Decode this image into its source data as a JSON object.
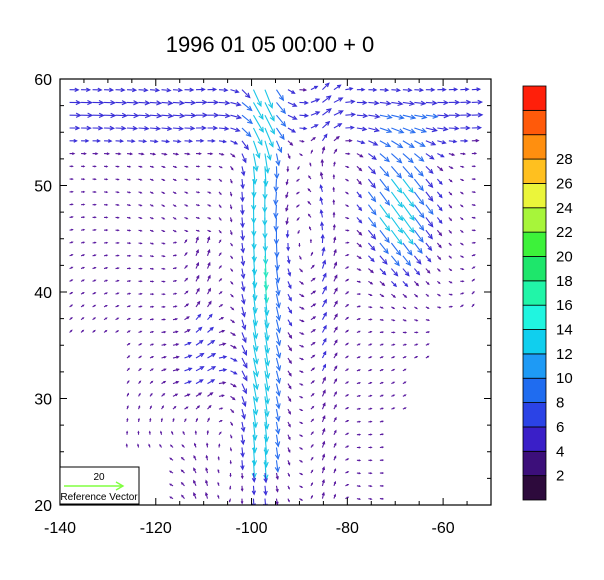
{
  "chart_data": {
    "type": "vector-field",
    "title": "1996 01 05 00:00 + 0",
    "xlabel": "",
    "ylabel": "",
    "xlim": [
      -140,
      -50
    ],
    "ylim": [
      20,
      60
    ],
    "x_ticks": [
      -140,
      -120,
      -100,
      -80,
      -60
    ],
    "x_tick_labels": [
      "-140",
      "-120",
      "-100",
      "-80",
      "-60"
    ],
    "y_ticks": [
      20,
      30,
      40,
      50,
      60
    ],
    "y_tick_labels": [
      "20",
      "30",
      "40",
      "50",
      "60"
    ],
    "grid": false,
    "reference_vector": {
      "magnitude": 20,
      "label": "Reference Vector",
      "value_label": "20",
      "color": "#80ff40"
    },
    "colorbar": {
      "colors": [
        "#2d0a3c",
        "#3c0f7a",
        "#3a1fc8",
        "#2b43e6",
        "#1f6cf0",
        "#1e9af5",
        "#10cfee",
        "#20f5e0",
        "#21f5a8",
        "#1ee66b",
        "#3df23a",
        "#a7f53a",
        "#ebf53a",
        "#ffc01f",
        "#ff8f0f",
        "#ff5a0a",
        "#ff1f0a"
      ],
      "labels": [
        "2",
        "4",
        "6",
        "8",
        "10",
        "12",
        "14",
        "16",
        "18",
        "20",
        "22",
        "24",
        "26",
        "28"
      ]
    },
    "vector_colors": {
      "low": "#5a1aa0",
      "mid": "#3a2fd8",
      "high": "#2a6ff0",
      "strong": "#19c6e6",
      "vstrong": "#2ae6c0",
      "peak": "#3ce63a"
    }
  }
}
